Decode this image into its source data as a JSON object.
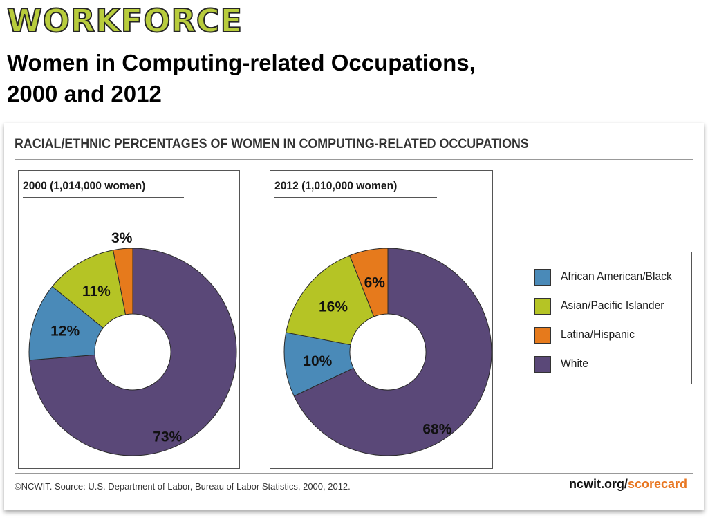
{
  "slide": {
    "logo": "WORKFORCE",
    "title_line1": "Women in Computing-related Occupations,",
    "title_line2": "2000 and 2012"
  },
  "card": {
    "header": "RACIAL/ETHNIC PERCENTAGES OF WOMEN IN COMPUTING-RELATED OCCUPATIONS",
    "source": "©NCWIT. Source: U.S. Department of Labor, Bureau of Labor Statistics, 2000, 2012.",
    "site_main": "ncwit.org/",
    "site_accent": "scorecard"
  },
  "colors": {
    "African American/Black": "#4a8ab8",
    "Asian/Pacific Islander": "#b5c425",
    "Latina/Hispanic": "#e67a1c",
    "White": "#5a4878",
    "accent": "#e87722"
  },
  "legend": {
    "placement": "right",
    "items": [
      {
        "label": "African American/Black"
      },
      {
        "label": "Asian/Pacific Islander"
      },
      {
        "label": "Latina/Hispanic"
      },
      {
        "label": "White"
      }
    ]
  },
  "chart_data": [
    {
      "type": "pie",
      "variant": "donut",
      "title": "2000 (1,014,000 women)",
      "categories": [
        "African American/Black",
        "Asian/Pacific Islander",
        "Latina/Hispanic",
        "White"
      ],
      "values": [
        12,
        11,
        3,
        73
      ],
      "labels": [
        "12%",
        "11%",
        "3%",
        "73%"
      ]
    },
    {
      "type": "pie",
      "variant": "donut",
      "title": "2012 (1,010,000 women)",
      "categories": [
        "African American/Black",
        "Asian/Pacific Islander",
        "Latina/Hispanic",
        "White"
      ],
      "values": [
        10,
        16,
        6,
        68
      ],
      "labels": [
        "10%",
        "16%",
        "6%",
        "68%"
      ]
    }
  ]
}
